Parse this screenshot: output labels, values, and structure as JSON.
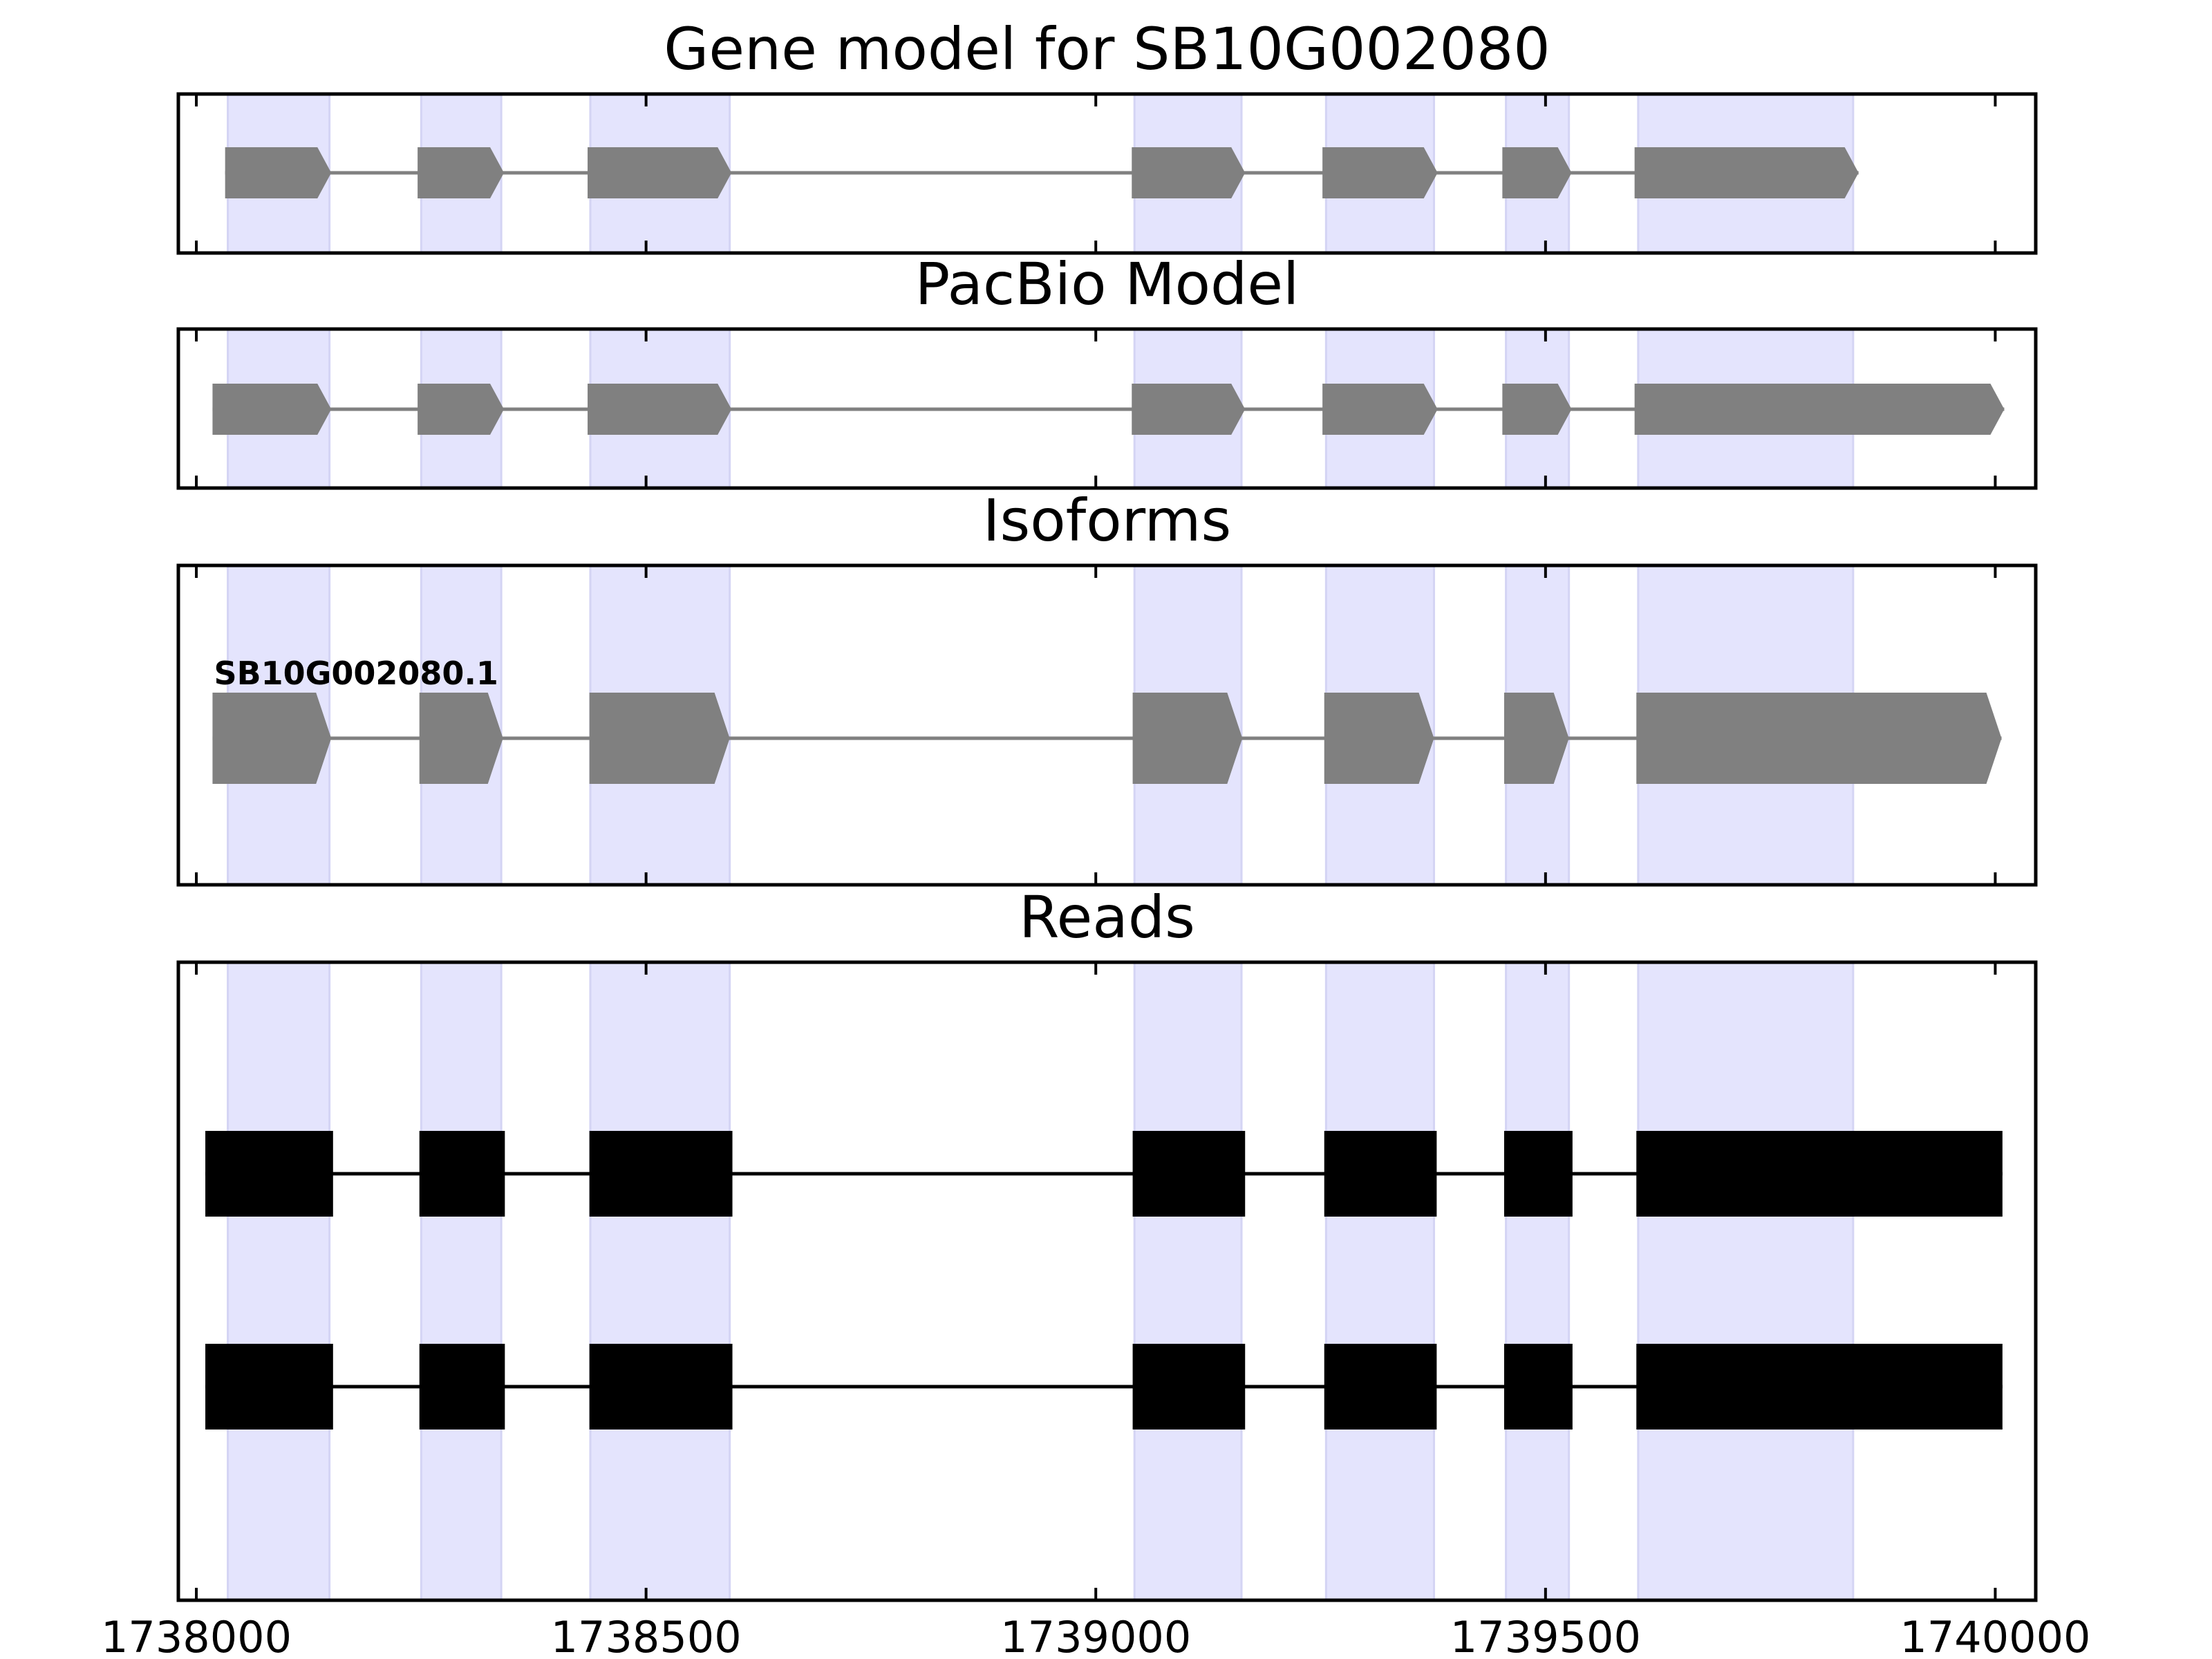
{
  "chart_data": {
    "type": "gene-track",
    "x_range": [
      1737980,
      1740045
    ],
    "x_ticks": [
      1738000,
      1738500,
      1739000,
      1739500,
      1740000
    ],
    "x_tick_labels": [
      "1738000",
      "1738500",
      "1739000",
      "1739500",
      "1740000"
    ],
    "colors": {
      "exon": "#808080",
      "intron": "#808080",
      "read": "#000000",
      "highlight": "#e4e4fd",
      "highlight_edge": "#d4d4f4"
    },
    "highlight_regions": [
      [
        1738035,
        1738148
      ],
      [
        1738250,
        1738339
      ],
      [
        1738438,
        1738593
      ],
      [
        1739043,
        1739162
      ],
      [
        1739256,
        1739376
      ],
      [
        1739456,
        1739526
      ],
      [
        1739603,
        1739842
      ]
    ],
    "panels": [
      {
        "title": "Gene model for SB10G002080",
        "kind": "model",
        "tracks": [
          {
            "label": "",
            "exons": [
              [
                1738032,
                1738150
              ],
              [
                1738246,
                1738342
              ],
              [
                1738435,
                1738595
              ],
              [
                1739040,
                1739166
              ],
              [
                1739252,
                1739380
              ],
              [
                1739452,
                1739529
              ],
              [
                1739599,
                1739848
              ]
            ]
          }
        ]
      },
      {
        "title": "PacBio Model",
        "kind": "model",
        "tracks": [
          {
            "label": "",
            "exons": [
              [
                1738018,
                1738150
              ],
              [
                1738246,
                1738342
              ],
              [
                1738435,
                1738595
              ],
              [
                1739040,
                1739166
              ],
              [
                1739252,
                1739380
              ],
              [
                1739452,
                1739529
              ],
              [
                1739599,
                1740010
              ]
            ]
          }
        ]
      },
      {
        "title": "Isoforms",
        "kind": "isoform",
        "tracks": [
          {
            "label": "SB10G002080.1",
            "exons": [
              [
                1738018,
                1738150
              ],
              [
                1738248,
                1738341
              ],
              [
                1738437,
                1738593
              ],
              [
                1739041,
                1739163
              ],
              [
                1739254,
                1739376
              ],
              [
                1739454,
                1739526
              ],
              [
                1739601,
                1740007
              ]
            ]
          }
        ]
      },
      {
        "title": "Reads",
        "kind": "reads",
        "tracks": [
          {
            "label": "",
            "exons": [
              [
                1738010,
                1738152
              ],
              [
                1738248,
                1738343
              ],
              [
                1738437,
                1738596
              ],
              [
                1739041,
                1739166
              ],
              [
                1739254,
                1739379
              ],
              [
                1739454,
                1739530
              ],
              [
                1739601,
                1740008
              ]
            ]
          },
          {
            "label": "",
            "exons": [
              [
                1738010,
                1738152
              ],
              [
                1738248,
                1738343
              ],
              [
                1738437,
                1738596
              ],
              [
                1739041,
                1739166
              ],
              [
                1739254,
                1739379
              ],
              [
                1739454,
                1739530
              ],
              [
                1739601,
                1740008
              ]
            ]
          }
        ]
      }
    ]
  }
}
